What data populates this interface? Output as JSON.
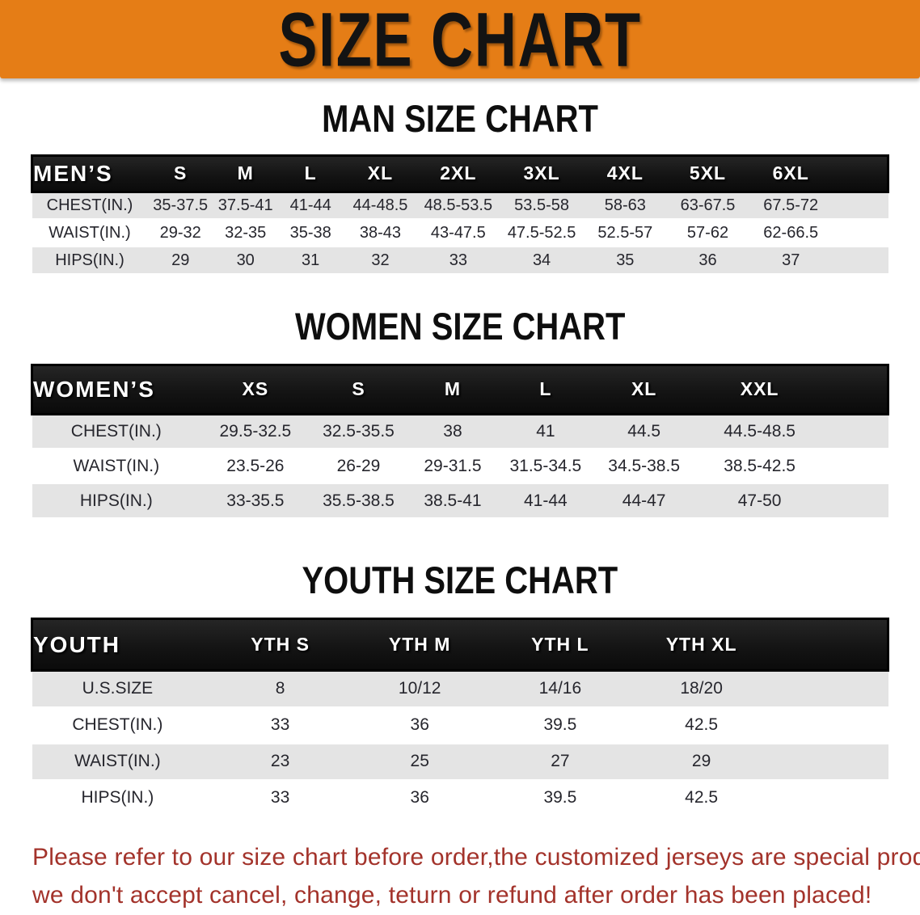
{
  "banner": {
    "title": "SIZE CHART"
  },
  "colors": {
    "banner_bg": "#E57D16",
    "header_bg": "#141414",
    "row_alt": "#E4E4E4",
    "disclaimer": "#A3332B"
  },
  "sections": [
    {
      "heading": "MAN SIZE CHART",
      "table": {
        "corner": "MEN’S",
        "sizes": [
          "S",
          "M",
          "L",
          "XL",
          "2XL",
          "3XL",
          "4XL",
          "5XL",
          "6XL"
        ],
        "rows": [
          {
            "label": "CHEST(IN.)",
            "values": [
              "35-37.5",
              "37.5-41",
              "41-44",
              "44-48.5",
              "48.5-53.5",
              "53.5-58",
              "58-63",
              "63-67.5",
              "67.5-72"
            ]
          },
          {
            "label": "WAIST(IN.)",
            "values": [
              "29-32",
              "32-35",
              "35-38",
              "38-43",
              "43-47.5",
              "47.5-52.5",
              "52.5-57",
              "57-62",
              "62-66.5"
            ]
          },
          {
            "label": "HIPS(IN.)",
            "values": [
              "29",
              "30",
              "31",
              "32",
              "33",
              "34",
              "35",
              "36",
              "37"
            ]
          }
        ]
      }
    },
    {
      "heading": "WOMEN SIZE CHART",
      "table": {
        "corner": "WOMEN’S",
        "sizes": [
          "XS",
          "S",
          "M",
          "L",
          "XL",
          "XXL"
        ],
        "rows": [
          {
            "label": "CHEST(IN.)",
            "values": [
              "29.5-32.5",
              "32.5-35.5",
              "38",
              "41",
              "44.5",
              "44.5-48.5"
            ]
          },
          {
            "label": "WAIST(IN.)",
            "values": [
              "23.5-26",
              "26-29",
              "29-31.5",
              "31.5-34.5",
              "34.5-38.5",
              "38.5-42.5"
            ]
          },
          {
            "label": "HIPS(IN.)",
            "values": [
              "33-35.5",
              "35.5-38.5",
              "38.5-41",
              "41-44",
              "44-47",
              "47-50"
            ]
          }
        ]
      }
    },
    {
      "heading": "YOUTH SIZE CHART",
      "table": {
        "corner": "YOUTH",
        "sizes": [
          "YTH S",
          "YTH M",
          "YTH L",
          "YTH XL"
        ],
        "rows": [
          {
            "label": "U.S.SIZE",
            "values": [
              "8",
              "10/12",
              "14/16",
              "18/20"
            ]
          },
          {
            "label": "CHEST(IN.)",
            "values": [
              "33",
              "36",
              "39.5",
              "42.5"
            ]
          },
          {
            "label": "WAIST(IN.)",
            "values": [
              "23",
              "25",
              "27",
              "29"
            ]
          },
          {
            "label": "HIPS(IN.)",
            "values": [
              "33",
              "36",
              "39.5",
              "42.5"
            ]
          }
        ]
      }
    }
  ],
  "disclaimer": {
    "line1": "Please refer to our size chart before order,the customized jerseys are special products,",
    "line2": "we don't accept cancel, change, teturn or refund after order has been placed!"
  }
}
